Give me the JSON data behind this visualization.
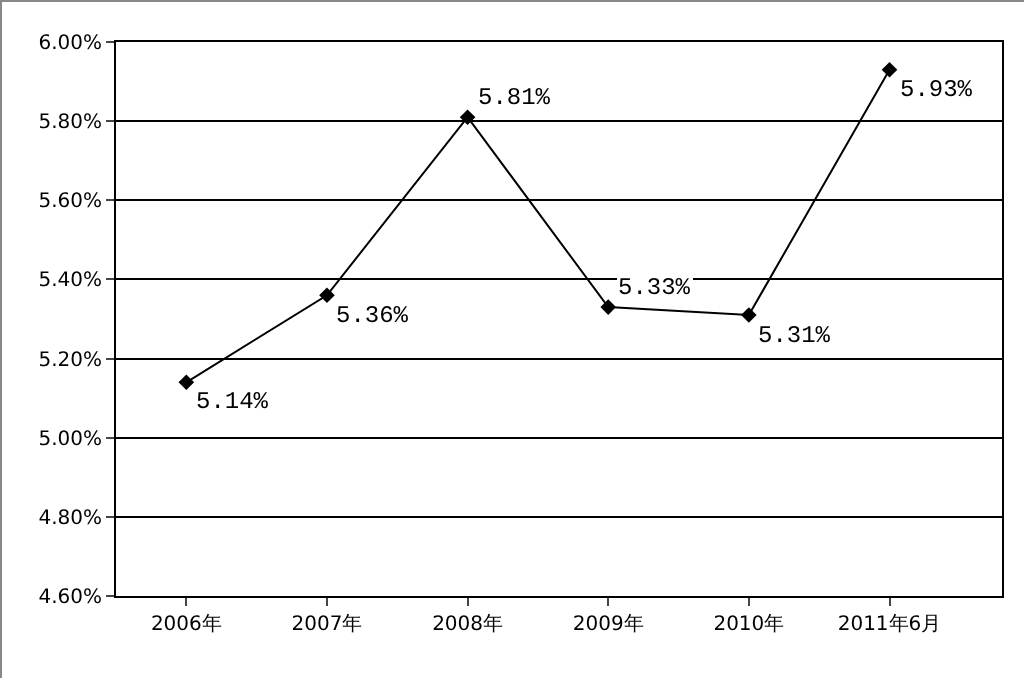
{
  "chart_data": {
    "type": "line",
    "categories": [
      "2006年",
      "2007年",
      "2008年",
      "2009年",
      "2010年",
      "2011年6月"
    ],
    "series": [
      {
        "color": "#000000",
        "values": [
          5.14,
          5.36,
          5.81,
          5.33,
          5.31,
          5.93
        ],
        "value_labels": [
          "5.14%",
          "5.36%",
          "5.81%",
          "5.33%",
          "5.31%",
          "5.93%"
        ]
      }
    ],
    "ylim": [
      4.6,
      6.0
    ],
    "yticks": [
      {
        "value": 4.6,
        "label": "4.60%"
      },
      {
        "value": 4.8,
        "label": "4.80%"
      },
      {
        "value": 5.0,
        "label": "5.00%"
      },
      {
        "value": 5.2,
        "label": "5.20%"
      },
      {
        "value": 5.4,
        "label": "5.40%"
      },
      {
        "value": 5.6,
        "label": "5.60%"
      },
      {
        "value": 5.8,
        "label": "5.80%"
      },
      {
        "value": 6.0,
        "label": "6.00%"
      }
    ],
    "grid": "y",
    "marker": "diamond",
    "line_style": "solid"
  }
}
